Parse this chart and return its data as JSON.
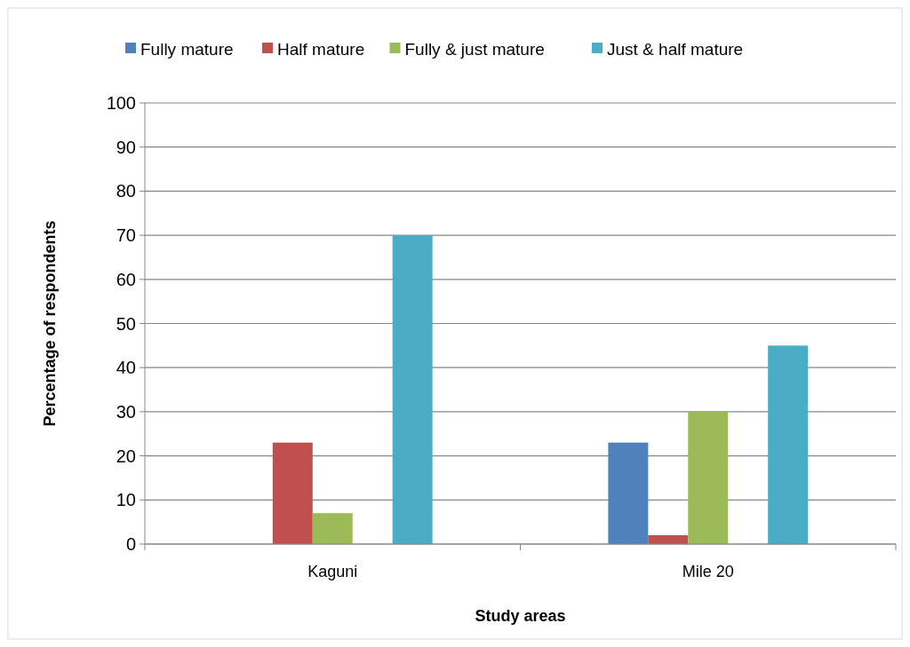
{
  "chart_data": {
    "type": "bar",
    "xlabel": "Study areas",
    "ylabel": "Percentage of respondents",
    "categories": [
      "Kaguni",
      "Mile 20"
    ],
    "series": [
      {
        "name": "Fully mature",
        "color": "#4f81bd",
        "values": [
          0,
          23
        ]
      },
      {
        "name": "Half mature",
        "color": "#c0504d",
        "values": [
          23,
          2
        ]
      },
      {
        "name": "Fully & just mature",
        "color": "#9bbb59",
        "values": [
          7,
          30
        ]
      },
      {
        "color": "#8064a2",
        "values": [
          0,
          0
        ]
      },
      {
        "name": "Just & half mature",
        "color": "#4bacc6",
        "values": [
          70,
          45
        ]
      }
    ],
    "ylim": [
      0,
      100
    ],
    "yticks": [
      0,
      10,
      20,
      30,
      40,
      50,
      60,
      70,
      80,
      90,
      100
    ],
    "grid": "y",
    "legend": "top"
  }
}
